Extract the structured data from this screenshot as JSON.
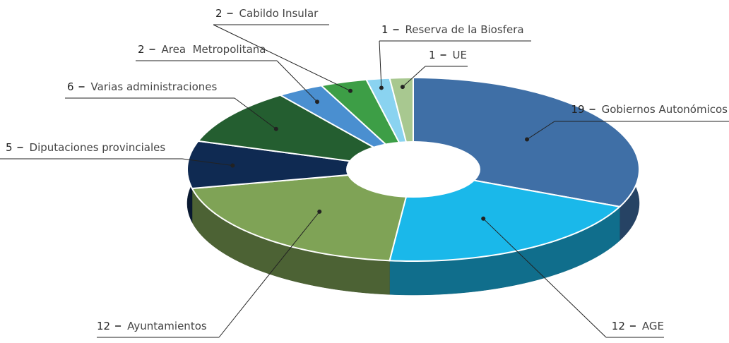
{
  "chart_data": {
    "type": "pie",
    "categories": [
      "Gobiernos Autonómicos",
      "AGE",
      "Ayuntamientos",
      "Diputaciones provinciales",
      "Varias administraciones",
      "Area  Metropolitana",
      "Cabildo Insular",
      "Reserva de la Biosfera",
      "UE"
    ],
    "values": [
      19,
      12,
      12,
      5,
      6,
      2,
      2,
      1,
      1
    ],
    "colors": [
      "#3f6fa6",
      "#1ab8ea",
      "#7fa356",
      "#0f2a52",
      "#245e30",
      "#4a8fd0",
      "#3d9e46",
      "#8ad3f0",
      "#a8c890"
    ]
  }
}
